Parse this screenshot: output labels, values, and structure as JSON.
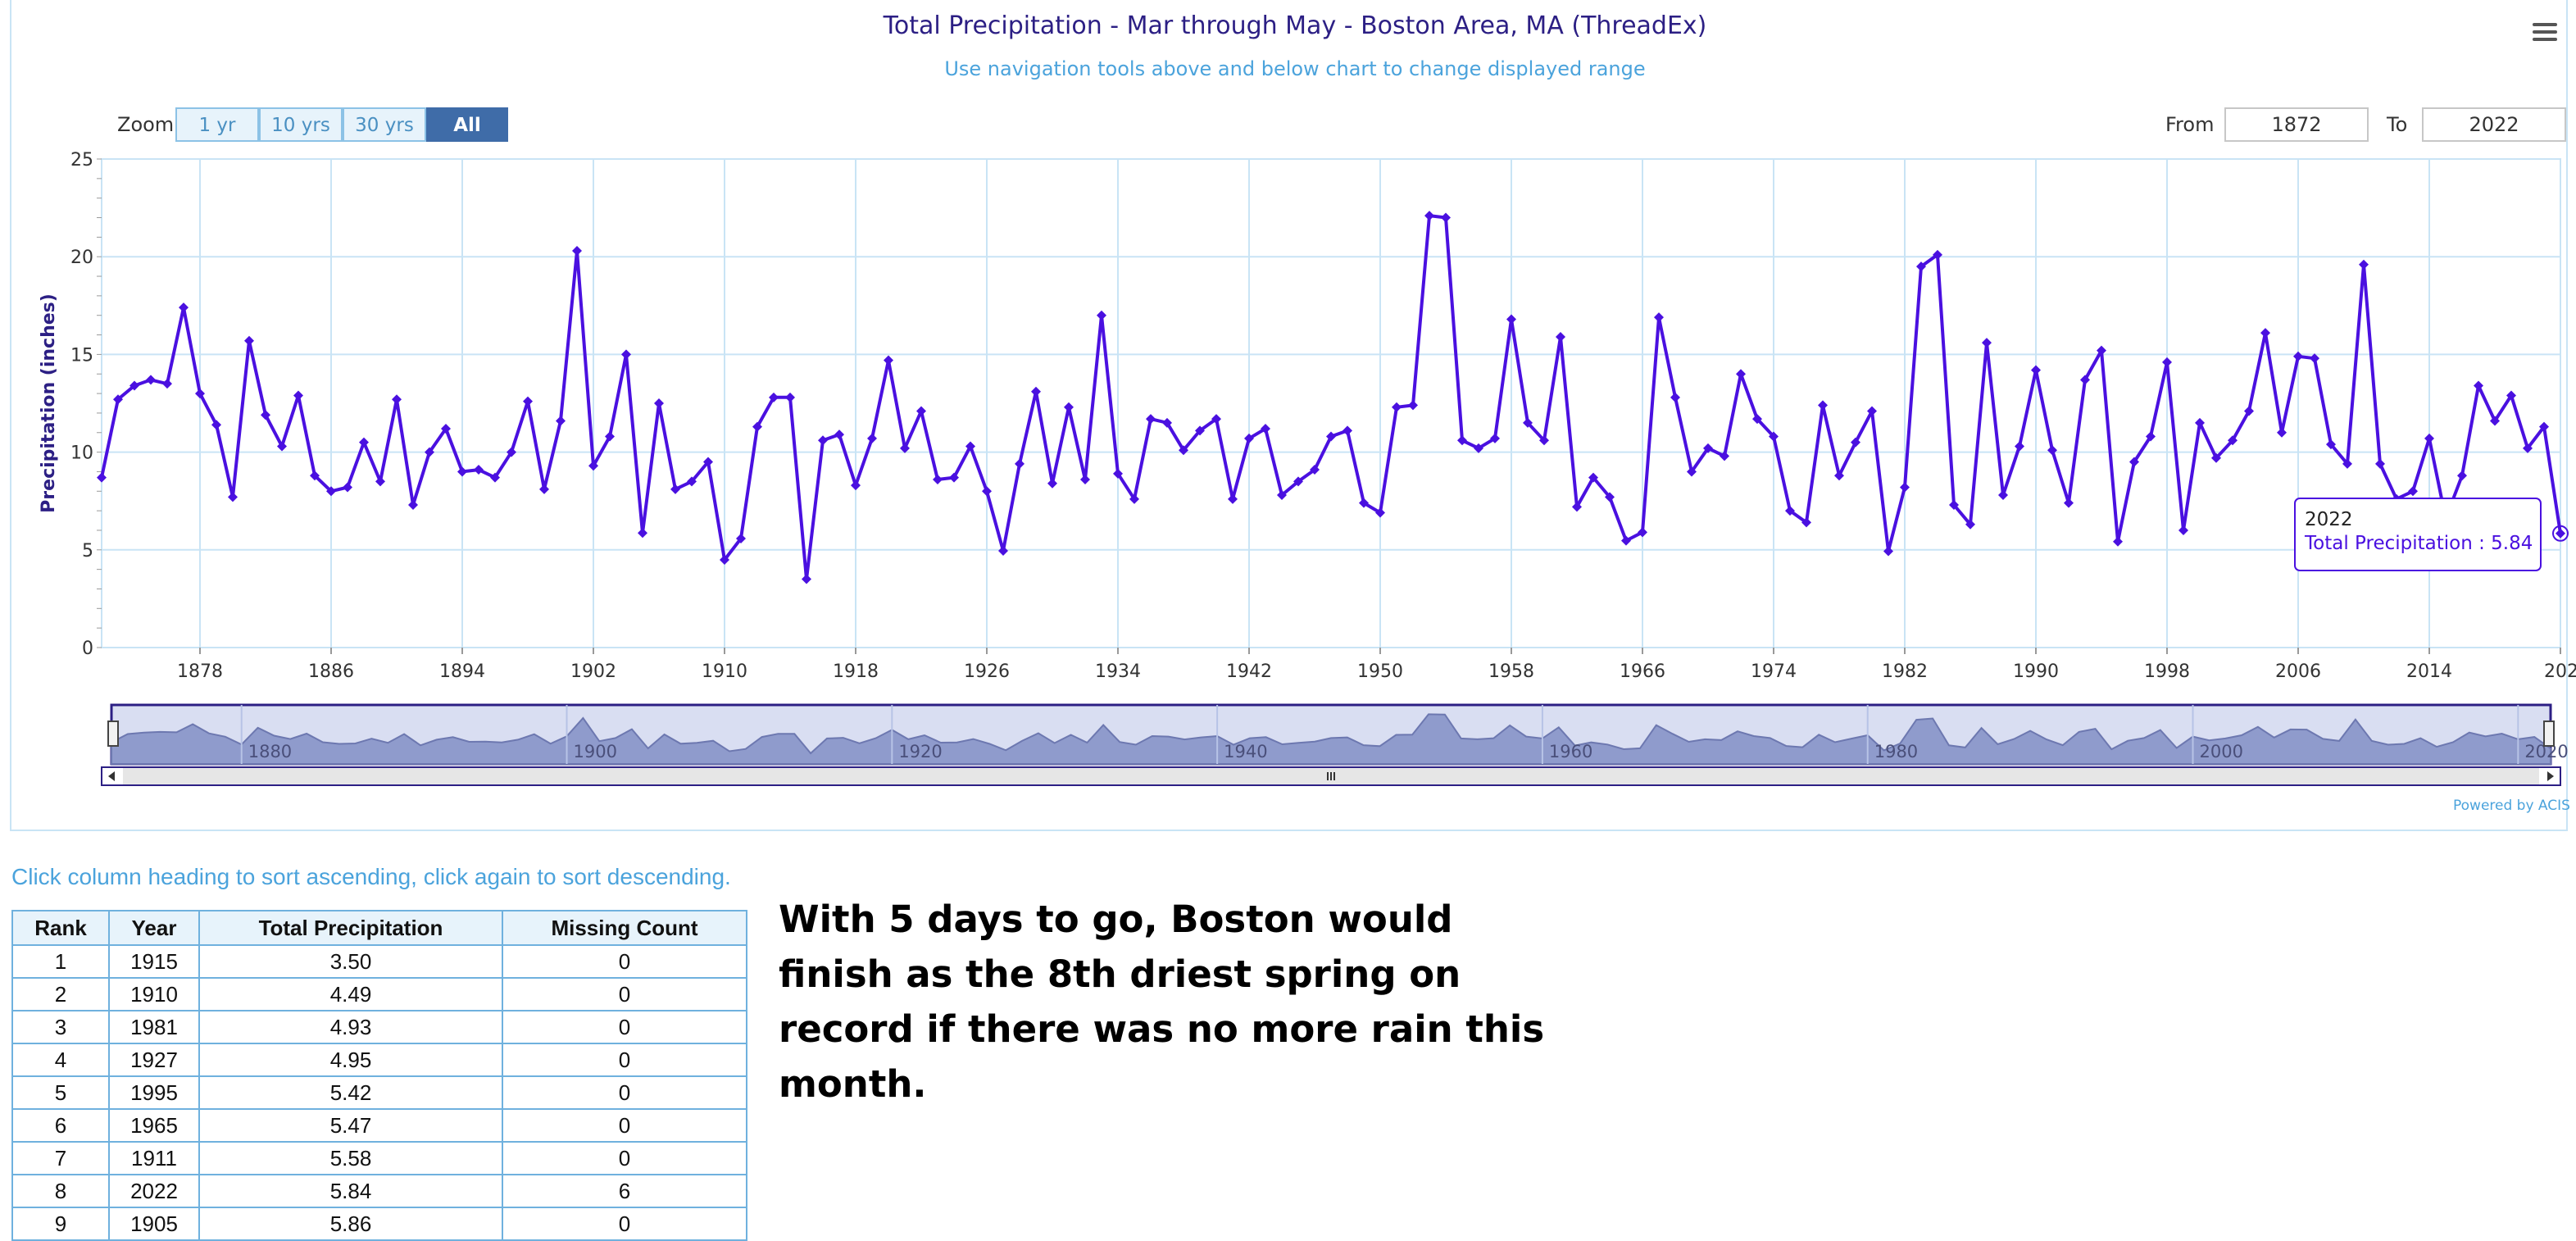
{
  "header": {
    "title": "Total Precipitation - Mar through May - Boston Area, MA (ThreadEx)",
    "subtitle": "Use navigation tools above and below chart to change displayed range"
  },
  "controls": {
    "zoom_label": "Zoom",
    "zoom_buttons": [
      "1 yr",
      "10 yrs",
      "30 yrs",
      "All"
    ],
    "zoom_active": "All",
    "from_label": "From",
    "from_value": "1872",
    "to_label": "To",
    "to_value": "2022"
  },
  "colors": {
    "series": "#4a10e0",
    "navigator_fill": "#8f9bcc",
    "navigator_mask": "#d9def2",
    "title": "#2c1f84",
    "subtitle": "#4ba3dc",
    "grid": "#c9e4f5"
  },
  "chart_data": {
    "type": "line",
    "title": "Total Precipitation - Mar through May - Boston Area, MA (ThreadEx)",
    "subtitle": "Use navigation tools above and below chart to change displayed range",
    "ylabel": "Precipitation (inches)",
    "xlabel": "",
    "xlim": [
      1872,
      2022
    ],
    "ylim": [
      0,
      25
    ],
    "x_ticks": [
      "1878",
      "1886",
      "1894",
      "1902",
      "1910",
      "1918",
      "1926",
      "1934",
      "1942",
      "1950",
      "1958",
      "1966",
      "1974",
      "1982",
      "1990",
      "1998",
      "2006",
      "2014",
      "202"
    ],
    "y_ticks": [
      "0",
      "5",
      "10",
      "15",
      "20",
      "25"
    ],
    "navigator_ticks": [
      "1880",
      "1900",
      "1920",
      "1940",
      "1960",
      "1980",
      "2000",
      "2020"
    ],
    "grid": true,
    "series": [
      {
        "x_start": 1872,
        "values": [
          8.7,
          12.7,
          13.4,
          13.7,
          13.5,
          17.4,
          13.0,
          11.4,
          7.7,
          15.7,
          11.9,
          10.3,
          12.9,
          8.8,
          8.0,
          8.2,
          10.5,
          8.5,
          12.7,
          7.3,
          10.0,
          11.2,
          9.0,
          9.1,
          8.7,
          10.0,
          12.6,
          8.1,
          11.6,
          20.3,
          9.3,
          10.8,
          15.0,
          5.86,
          12.5,
          8.1,
          8.5,
          9.5,
          4.49,
          5.58,
          11.3,
          12.8,
          12.8,
          3.5,
          10.6,
          10.9,
          8.3,
          10.7,
          14.7,
          10.2,
          12.1,
          8.6,
          8.7,
          10.3,
          8.0,
          4.95,
          9.4,
          13.1,
          8.4,
          12.3,
          8.6,
          17.0,
          8.9,
          7.6,
          11.7,
          11.5,
          10.1,
          11.1,
          11.7,
          7.6,
          10.7,
          11.2,
          7.8,
          8.5,
          9.1,
          10.8,
          11.1,
          7.4,
          6.9,
          12.3,
          12.4,
          22.1,
          22.0,
          10.6,
          10.2,
          10.7,
          16.8,
          11.5,
          10.6,
          15.9,
          7.2,
          8.7,
          7.7,
          5.47,
          5.9,
          16.9,
          12.8,
          9.0,
          10.2,
          9.8,
          14.0,
          11.7,
          10.8,
          7.0,
          6.4,
          12.4,
          8.8,
          10.5,
          12.1,
          4.93,
          8.2,
          19.5,
          20.1,
          7.3,
          6.3,
          15.6,
          7.8,
          10.3,
          14.2,
          10.1,
          7.4,
          13.7,
          15.2,
          5.42,
          9.5,
          10.8,
          14.6,
          6.0,
          11.5,
          9.7,
          10.6,
          12.1,
          16.1,
          11.0,
          14.9,
          14.8,
          10.4,
          9.4,
          19.6,
          9.4,
          7.6,
          8.0,
          10.7,
          6.6,
          8.8,
          13.4,
          11.6,
          12.9,
          10.2,
          11.3,
          5.84
        ]
      }
    ],
    "tooltip": {
      "year": "2022",
      "label": "Total Precipitation : 5.84"
    }
  },
  "credit": "Powered by ACIS",
  "table": {
    "hint": "Click column heading to sort ascending, click again to sort descending.",
    "headers": [
      "Rank",
      "Year",
      "Total Precipitation",
      "Missing Count"
    ],
    "rows": [
      [
        "1",
        "1915",
        "3.50",
        "0"
      ],
      [
        "2",
        "1910",
        "4.49",
        "0"
      ],
      [
        "3",
        "1981",
        "4.93",
        "0"
      ],
      [
        "4",
        "1927",
        "4.95",
        "0"
      ],
      [
        "5",
        "1995",
        "5.42",
        "0"
      ],
      [
        "6",
        "1965",
        "5.47",
        "0"
      ],
      [
        "7",
        "1911",
        "5.58",
        "0"
      ],
      [
        "8",
        "2022",
        "5.84",
        "6"
      ],
      [
        "9",
        "1905",
        "5.86",
        "0"
      ]
    ]
  },
  "note": "With 5 days to go, Boston would finish as the 8th driest spring on record if there was no more rain this month."
}
